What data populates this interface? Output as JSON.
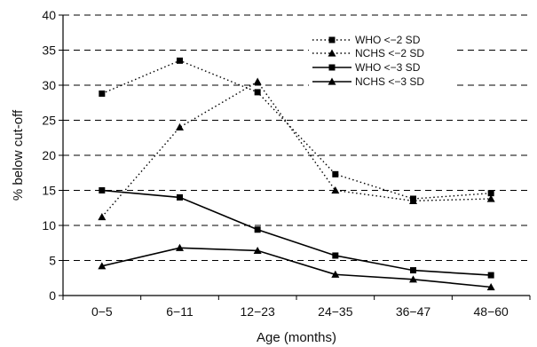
{
  "chart_data": {
    "type": "line",
    "xlabel": "Age (months)",
    "ylabel": "% below cut-off",
    "categories": [
      "0−5",
      "6−11",
      "12−23",
      "24−35",
      "36−47",
      "48−60"
    ],
    "ylim": [
      0,
      40
    ],
    "yticks": [
      0,
      5,
      10,
      15,
      20,
      25,
      30,
      35,
      40
    ],
    "grid": "horizontal dashed",
    "legend_position": "top-right",
    "series": [
      {
        "name": "WHO <−2 SD",
        "marker": "square",
        "line": "dotted",
        "values": [
          28.8,
          33.5,
          29.0,
          17.3,
          13.8,
          14.6
        ]
      },
      {
        "name": "NCHS <−2 SD",
        "marker": "triangle",
        "line": "dotted",
        "values": [
          11.2,
          24.0,
          30.5,
          15.0,
          13.5,
          13.8
        ]
      },
      {
        "name": "WHO <−3 SD",
        "marker": "square",
        "line": "solid",
        "values": [
          15.0,
          14.0,
          9.4,
          5.7,
          3.6,
          2.9
        ]
      },
      {
        "name": "NCHS <−3 SD",
        "marker": "triangle",
        "line": "solid",
        "values": [
          4.2,
          6.8,
          6.4,
          3.0,
          2.3,
          1.2
        ]
      }
    ]
  }
}
